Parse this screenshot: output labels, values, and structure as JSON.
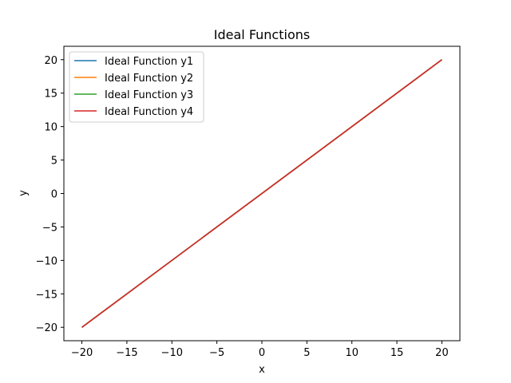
{
  "chart_data": {
    "type": "line",
    "title": "Ideal Functions",
    "xlabel": "x",
    "ylabel": "y",
    "xlim": [
      -22,
      22
    ],
    "ylim": [
      -22,
      22
    ],
    "xticks": [
      -20,
      -15,
      -10,
      -5,
      0,
      5,
      10,
      15,
      20
    ],
    "yticks": [
      -20,
      -15,
      -10,
      -5,
      0,
      5,
      10,
      15,
      20
    ],
    "x": [
      -20,
      20
    ],
    "series": [
      {
        "name": "Ideal Function y1",
        "color": "#1f77b4",
        "values": [
          -20,
          20
        ]
      },
      {
        "name": "Ideal Function y2",
        "color": "#ff7f0e",
        "values": [
          -20,
          20
        ]
      },
      {
        "name": "Ideal Function y3",
        "color": "#2ca02c",
        "values": [
          -20,
          20
        ]
      },
      {
        "name": "Ideal Function y4",
        "color": "#d62728",
        "values": [
          -20,
          20
        ]
      }
    ],
    "grid": false,
    "legend_position": "top-left"
  }
}
